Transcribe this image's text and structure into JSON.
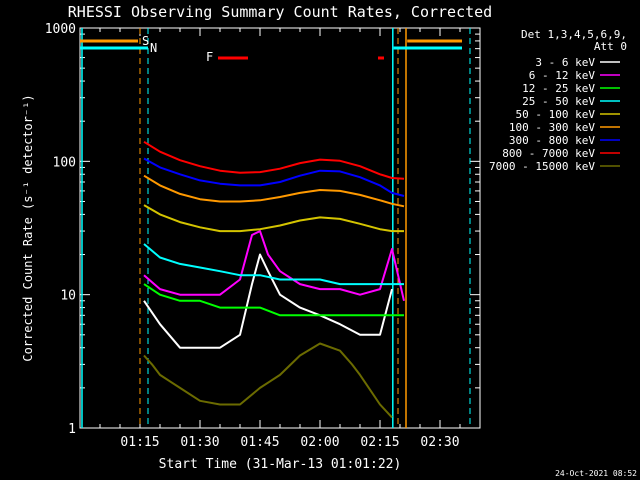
{
  "chart_data": {
    "type": "line",
    "title": "RHESSI Observing Summary Count Rates, Corrected",
    "xlabel": "Start Time (31-Mar-13 01:01:22)",
    "ylabel": "Corrected Count Rate (s⁻¹ detector⁻¹)",
    "yscale": "log",
    "ylim": [
      1,
      1000
    ],
    "xlim_min": [
      60,
      160
    ],
    "x_ticks": [
      {
        "v": 75,
        "label": "01:15"
      },
      {
        "v": 90,
        "label": "01:30"
      },
      {
        "v": 105,
        "label": "01:45"
      },
      {
        "v": 120,
        "label": "02:00"
      },
      {
        "v": 135,
        "label": "02:15"
      },
      {
        "v": 150,
        "label": "02:30"
      }
    ],
    "y_ticks": [
      {
        "v": 1,
        "label": "1"
      },
      {
        "v": 10,
        "label": "10"
      },
      {
        "v": 100,
        "label": "100"
      },
      {
        "v": 1000,
        "label": "1000"
      }
    ],
    "legend_title": [
      "Det 1,3,4,5,6,9,",
      "Att 0"
    ],
    "legend_position": "right",
    "grid": false,
    "series": [
      {
        "name": "3 - 6 keV",
        "color": "#ffffff",
        "x": [
          76,
          80,
          85,
          90,
          95,
          100,
          103,
          105,
          107,
          110,
          115,
          120,
          125,
          130,
          135,
          138
        ],
        "y": [
          9,
          6,
          4,
          4,
          4,
          5,
          12,
          20,
          15,
          10,
          8,
          7,
          6,
          5,
          5,
          11
        ]
      },
      {
        "name": "6 - 12 keV",
        "color": "#ff00ff",
        "x": [
          76,
          80,
          85,
          90,
          95,
          100,
          103,
          105,
          107,
          110,
          115,
          120,
          125,
          130,
          135,
          138,
          141
        ],
        "y": [
          14,
          11,
          10,
          10,
          10,
          13,
          28,
          30,
          20,
          15,
          12,
          11,
          11,
          10,
          11,
          22,
          9
        ]
      },
      {
        "name": "12 - 25 keV",
        "color": "#00ff00",
        "x": [
          76,
          80,
          85,
          90,
          95,
          100,
          105,
          110,
          115,
          120,
          125,
          130,
          135,
          138,
          141
        ],
        "y": [
          12,
          10,
          9,
          9,
          8,
          8,
          8,
          7,
          7,
          7,
          7,
          7,
          7,
          7,
          7
        ]
      },
      {
        "name": "25 - 50 keV",
        "color": "#00ffff",
        "x": [
          76,
          80,
          85,
          90,
          95,
          100,
          105,
          110,
          115,
          120,
          125,
          130,
          135,
          138,
          141
        ],
        "y": [
          24,
          19,
          17,
          16,
          15,
          14,
          14,
          13,
          13,
          13,
          12,
          12,
          12,
          12,
          12
        ]
      },
      {
        "name": "50 - 100 keV",
        "color": "#d4c400",
        "x": [
          76,
          80,
          85,
          90,
          95,
          100,
          105,
          110,
          115,
          120,
          125,
          130,
          135,
          138,
          141
        ],
        "y": [
          47,
          40,
          35,
          32,
          30,
          30,
          31,
          33,
          36,
          38,
          37,
          34,
          31,
          30,
          30
        ]
      },
      {
        "name": "100 - 300 keV",
        "color": "#ff9900",
        "x": [
          76,
          80,
          85,
          90,
          95,
          100,
          105,
          110,
          115,
          120,
          125,
          130,
          135,
          138,
          141
        ],
        "y": [
          78,
          66,
          57,
          52,
          50,
          50,
          51,
          54,
          58,
          61,
          60,
          56,
          51,
          48,
          46
        ]
      },
      {
        "name": "300 - 800 keV",
        "color": "#0000ff",
        "x": [
          76,
          80,
          85,
          90,
          95,
          100,
          105,
          110,
          115,
          120,
          125,
          130,
          135,
          138,
          141
        ],
        "y": [
          105,
          90,
          80,
          72,
          68,
          66,
          66,
          70,
          78,
          85,
          84,
          76,
          66,
          58,
          55
        ]
      },
      {
        "name": "800 - 7000 keV",
        "color": "#ff0000",
        "x": [
          76,
          80,
          85,
          90,
          95,
          100,
          105,
          110,
          115,
          120,
          125,
          130,
          135,
          138,
          141
        ],
        "y": [
          140,
          118,
          102,
          92,
          85,
          82,
          83,
          88,
          97,
          103,
          101,
          92,
          80,
          75,
          74
        ]
      },
      {
        "name": "7000 - 15000 keV",
        "color": "#6b6b00",
        "x": [
          76,
          78,
          80,
          85,
          90,
          95,
          100,
          105,
          110,
          115,
          120,
          125,
          128,
          130,
          135,
          138
        ],
        "y": [
          3.5,
          3,
          2.5,
          2,
          1.6,
          1.5,
          1.5,
          2,
          2.5,
          3.5,
          4.3,
          3.8,
          3,
          2.5,
          1.5,
          1.2
        ]
      }
    ],
    "annotations": [
      {
        "label": "S",
        "x": 75.0,
        "color": "#ff9900"
      },
      {
        "label": "N",
        "x": 77.0,
        "color": "#00ffff"
      },
      {
        "label": "F",
        "x1": 94.5,
        "x2": 102.0,
        "color": "#ff0000"
      }
    ]
  },
  "timestamp": "24-Oct-2021 08:52"
}
